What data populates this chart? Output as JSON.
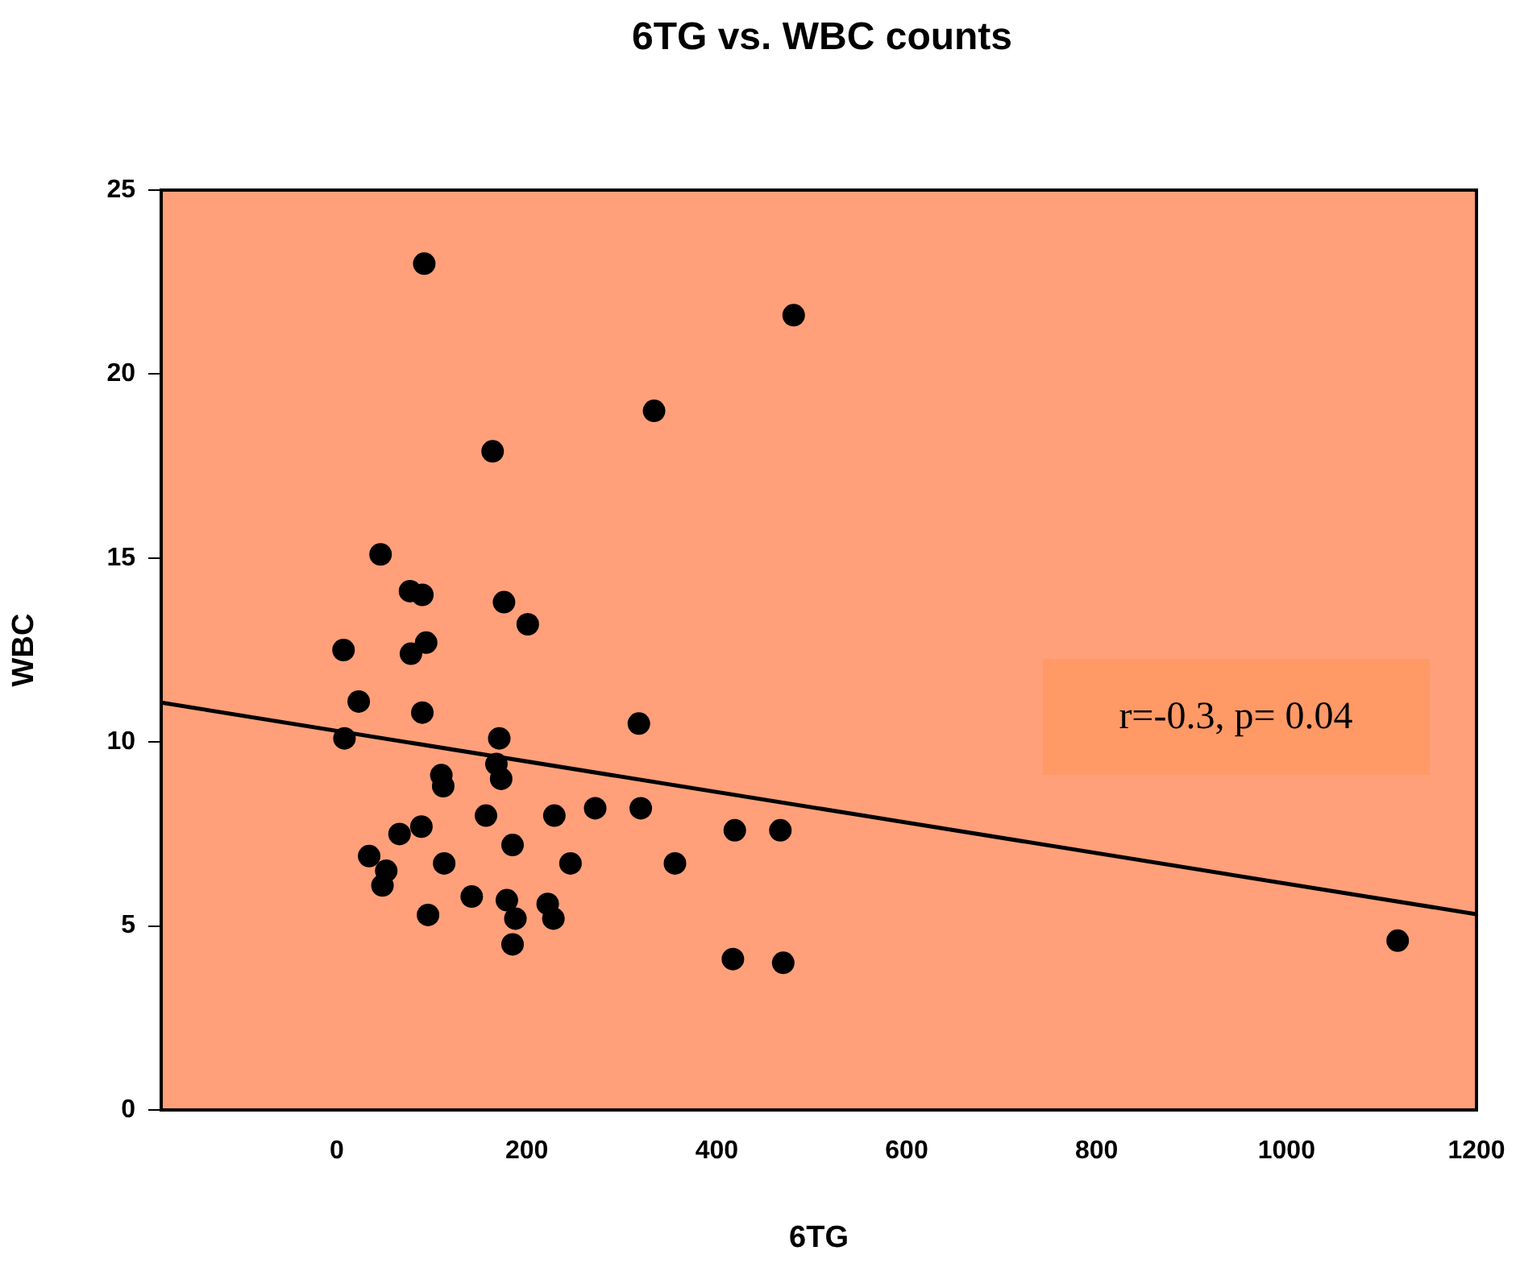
{
  "chart_data": {
    "type": "scatter",
    "title": "6TG vs. WBC counts",
    "xlabel": "6TG",
    "ylabel": "WBC",
    "xlim": [
      -185,
      1200
    ],
    "xticks": [
      0,
      200,
      400,
      600,
      800,
      1000,
      1200
    ],
    "ylim": [
      0,
      25
    ],
    "yticks": [
      0,
      5,
      10,
      15,
      20,
      25
    ],
    "grid": false,
    "legend": false,
    "marker": "circle",
    "series": [
      {
        "color": "#000000",
        "x": [
          92,
          481,
          334,
          164,
          46,
          77,
          90,
          176,
          201,
          7,
          94,
          78,
          23,
          90,
          8,
          171,
          168,
          173,
          110,
          112,
          157,
          229,
          272,
          66,
          89,
          185,
          34,
          113,
          246,
          52,
          48,
          142,
          179,
          222,
          188,
          228,
          96,
          185,
          318,
          320,
          419,
          467,
          356,
          417,
          470,
          1117
        ],
        "values": [
          23.0,
          21.6,
          19.0,
          17.9,
          15.1,
          14.1,
          14.0,
          13.8,
          13.2,
          12.5,
          12.7,
          12.4,
          11.1,
          10.8,
          10.1,
          10.1,
          9.4,
          9.0,
          9.1,
          8.8,
          8.0,
          8.0,
          8.2,
          7.5,
          7.7,
          7.2,
          6.9,
          6.7,
          6.7,
          6.5,
          6.1,
          5.8,
          5.7,
          5.6,
          5.2,
          5.2,
          5.3,
          4.5,
          10.5,
          8.2,
          7.6,
          7.6,
          6.7,
          4.1,
          4.0,
          4.6
        ]
      },
      {
        "type": "line",
        "color": "#000000",
        "x": [
          -185,
          1200
        ],
        "values": [
          11.07,
          5.32
        ],
        "marker": "none",
        "line_style": "solid"
      }
    ],
    "annotations": [
      "r=-0.3, p= 0.04"
    ]
  }
}
